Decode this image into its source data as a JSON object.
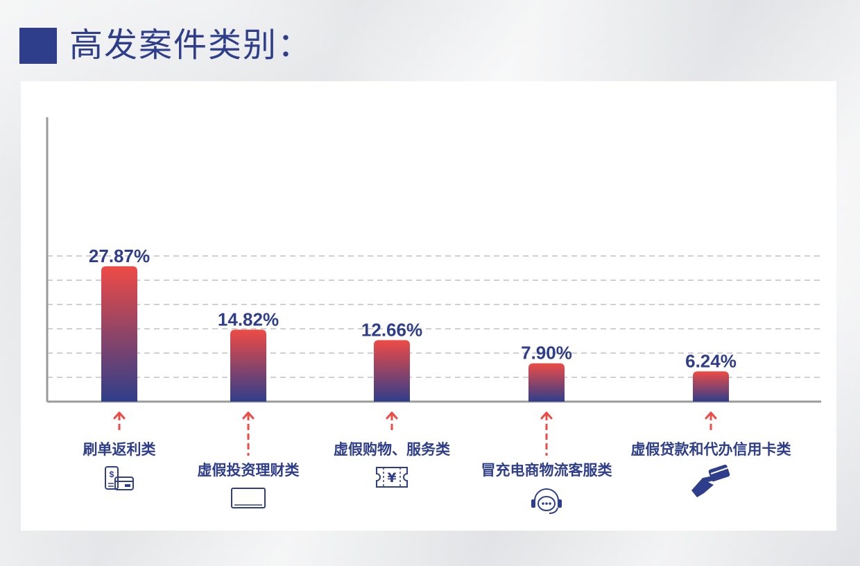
{
  "header": {
    "title": "高发案件类别："
  },
  "colors": {
    "accent_blue": "#2f3e8a",
    "accent_red": "#ee4b45",
    "axis": "#9a9a9a",
    "grid": "#b5b5b5"
  },
  "chart_data": {
    "type": "bar",
    "categories": [
      "刷单返利类",
      "虚假投资理财类",
      "虚假购物、服务类",
      "冒充电商物流客服类",
      "虚假贷款和代办信用卡类"
    ],
    "values": [
      27.87,
      14.82,
      12.66,
      7.9,
      6.24
    ],
    "value_labels": [
      "27.87%",
      "14.82%",
      "12.66%",
      "7.90%",
      "6.24%"
    ],
    "icons": [
      "payment-card-icon",
      "monitor-icon",
      "coupon-yen-icon",
      "customer-service-headset-icon",
      "hand-credit-card-icon"
    ],
    "ylim": [
      0,
      30
    ],
    "grid": true,
    "legend": "none"
  }
}
